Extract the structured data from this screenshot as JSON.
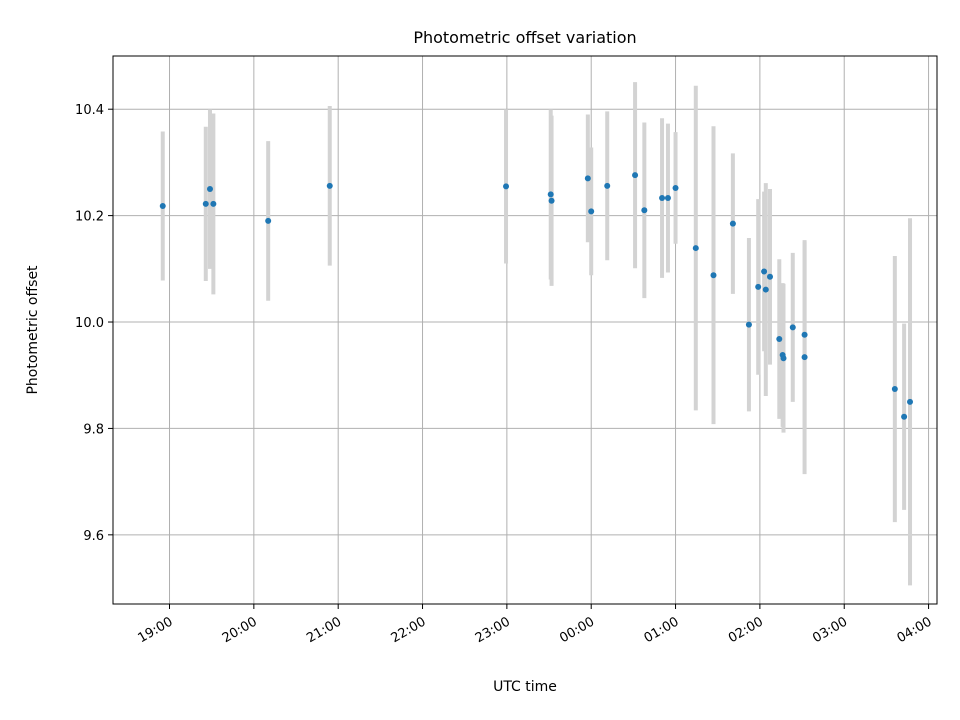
{
  "chart_data": {
    "type": "scatter",
    "title": "Photometric offset variation",
    "xlabel": "UTC time",
    "ylabel": "Photometric offset",
    "x_unit": "hours (UTC), values past 24 continue into next day",
    "xlim": [
      18.33,
      28.1
    ],
    "ylim": [
      9.47,
      10.5
    ],
    "x_ticks": [
      {
        "value": 19,
        "label": "19:00"
      },
      {
        "value": 20,
        "label": "20:00"
      },
      {
        "value": 21,
        "label": "21:00"
      },
      {
        "value": 22,
        "label": "22:00"
      },
      {
        "value": 23,
        "label": "23:00"
      },
      {
        "value": 24,
        "label": "00:00"
      },
      {
        "value": 25,
        "label": "01:00"
      },
      {
        "value": 26,
        "label": "02:00"
      },
      {
        "value": 27,
        "label": "03:00"
      },
      {
        "value": 28,
        "label": "04:00"
      }
    ],
    "y_ticks": [
      {
        "value": 9.6,
        "label": "9.6"
      },
      {
        "value": 9.8,
        "label": "9.8"
      },
      {
        "value": 10.0,
        "label": "10.0"
      },
      {
        "value": 10.2,
        "label": "10.2"
      },
      {
        "value": 10.4,
        "label": "10.4"
      }
    ],
    "grid": true,
    "marker_color": "#1f77b4",
    "errorbar_color": "#d3d3d3",
    "points": [
      {
        "x": 18.92,
        "y": 10.218,
        "err": 0.14
      },
      {
        "x": 19.43,
        "y": 10.222,
        "err": 0.145
      },
      {
        "x": 19.48,
        "y": 10.25,
        "err": 0.15
      },
      {
        "x": 19.52,
        "y": 10.222,
        "err": 0.17
      },
      {
        "x": 20.17,
        "y": 10.19,
        "err": 0.15
      },
      {
        "x": 20.9,
        "y": 10.256,
        "err": 0.15
      },
      {
        "x": 22.99,
        "y": 10.255,
        "err": 0.145
      },
      {
        "x": 23.52,
        "y": 10.24,
        "err": 0.16
      },
      {
        "x": 23.53,
        "y": 10.228,
        "err": 0.16
      },
      {
        "x": 23.96,
        "y": 10.27,
        "err": 0.12
      },
      {
        "x": 24.0,
        "y": 10.208,
        "err": 0.12
      },
      {
        "x": 24.19,
        "y": 10.256,
        "err": 0.14
      },
      {
        "x": 24.52,
        "y": 10.276,
        "err": 0.175
      },
      {
        "x": 24.63,
        "y": 10.21,
        "err": 0.165
      },
      {
        "x": 24.84,
        "y": 10.233,
        "err": 0.15
      },
      {
        "x": 24.91,
        "y": 10.233,
        "err": 0.14
      },
      {
        "x": 25.0,
        "y": 10.252,
        "err": 0.105
      },
      {
        "x": 25.24,
        "y": 10.139,
        "err": 0.305
      },
      {
        "x": 25.45,
        "y": 10.088,
        "err": 0.28
      },
      {
        "x": 25.68,
        "y": 10.185,
        "err": 0.132
      },
      {
        "x": 25.87,
        "y": 9.995,
        "err": 0.163
      },
      {
        "x": 25.98,
        "y": 10.066,
        "err": 0.165
      },
      {
        "x": 26.05,
        "y": 10.095,
        "err": 0.15
      },
      {
        "x": 26.07,
        "y": 10.061,
        "err": 0.2
      },
      {
        "x": 26.12,
        "y": 10.085,
        "err": 0.165
      },
      {
        "x": 26.23,
        "y": 9.968,
        "err": 0.15
      },
      {
        "x": 26.27,
        "y": 9.938,
        "err": 0.135
      },
      {
        "x": 26.28,
        "y": 9.932,
        "err": 0.14
      },
      {
        "x": 26.39,
        "y": 9.99,
        "err": 0.14
      },
      {
        "x": 26.53,
        "y": 9.976,
        "err": 0.175
      },
      {
        "x": 26.53,
        "y": 9.934,
        "err": 0.22
      },
      {
        "x": 27.6,
        "y": 9.874,
        "err": 0.25
      },
      {
        "x": 27.71,
        "y": 9.822,
        "err": 0.175
      },
      {
        "x": 27.78,
        "y": 9.85,
        "err": 0.345
      }
    ]
  }
}
